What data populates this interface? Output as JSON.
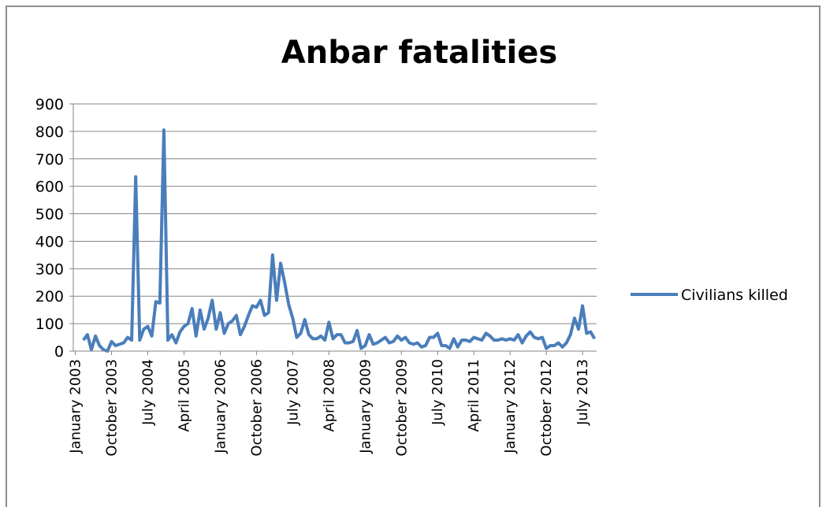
{
  "chart_data": {
    "type": "line",
    "title": "Anbar fatalities",
    "categories": [
      "January 2003",
      null,
      null,
      null,
      null,
      null,
      null,
      null,
      null,
      "October 2003",
      null,
      null,
      null,
      null,
      null,
      null,
      null,
      null,
      "July 2004",
      null,
      null,
      null,
      null,
      null,
      null,
      null,
      null,
      "April 2005",
      null,
      null,
      null,
      null,
      null,
      null,
      null,
      null,
      "January 2006",
      null,
      null,
      null,
      null,
      null,
      null,
      null,
      null,
      "October 2006",
      null,
      null,
      null,
      null,
      null,
      null,
      null,
      null,
      "July 2007",
      null,
      null,
      null,
      null,
      null,
      null,
      null,
      null,
      "April 2008",
      null,
      null,
      null,
      null,
      null,
      null,
      null,
      null,
      "January 2009",
      null,
      null,
      null,
      null,
      null,
      null,
      null,
      null,
      "October 2009",
      null,
      null,
      null,
      null,
      null,
      null,
      null,
      null,
      "July 2010",
      null,
      null,
      null,
      null,
      null,
      null,
      null,
      null,
      "April 2011",
      null,
      null,
      null,
      null,
      null,
      null,
      null,
      null,
      "January 2012",
      null,
      null,
      null,
      null,
      null,
      null,
      null,
      null,
      "October 2012",
      null,
      null,
      null,
      null,
      null,
      null,
      null,
      null,
      "July 2013",
      null,
      null,
      null
    ],
    "series": [
      {
        "name": "Civilians killed",
        "color": "#4a7ebb",
        "values": [
          null,
          null,
          40,
          60,
          5,
          55,
          20,
          5,
          0,
          35,
          20,
          25,
          30,
          50,
          40,
          635,
          40,
          80,
          90,
          55,
          180,
          175,
          805,
          40,
          60,
          30,
          70,
          90,
          100,
          155,
          55,
          150,
          80,
          120,
          185,
          80,
          140,
          65,
          100,
          110,
          130,
          60,
          90,
          130,
          165,
          160,
          185,
          130,
          140,
          350,
          185,
          320,
          250,
          170,
          120,
          50,
          65,
          115,
          60,
          45,
          45,
          55,
          40,
          105,
          45,
          60,
          60,
          30,
          30,
          35,
          75,
          10,
          20,
          60,
          25,
          30,
          40,
          50,
          30,
          35,
          55,
          40,
          50,
          30,
          25,
          30,
          15,
          20,
          50,
          50,
          65,
          20,
          20,
          10,
          45,
          15,
          40,
          40,
          35,
          50,
          45,
          40,
          65,
          55,
          40,
          40,
          45,
          40,
          45,
          40,
          60,
          30,
          55,
          70,
          50,
          45,
          50,
          10,
          20,
          20,
          30,
          15,
          30,
          60,
          120,
          80,
          165,
          65,
          70,
          45
        ]
      }
    ],
    "ylim": [
      0,
      900
    ],
    "yticks": [
      0,
      100,
      200,
      300,
      400,
      500,
      600,
      700,
      800,
      900
    ],
    "grid": true,
    "legend": "right"
  }
}
